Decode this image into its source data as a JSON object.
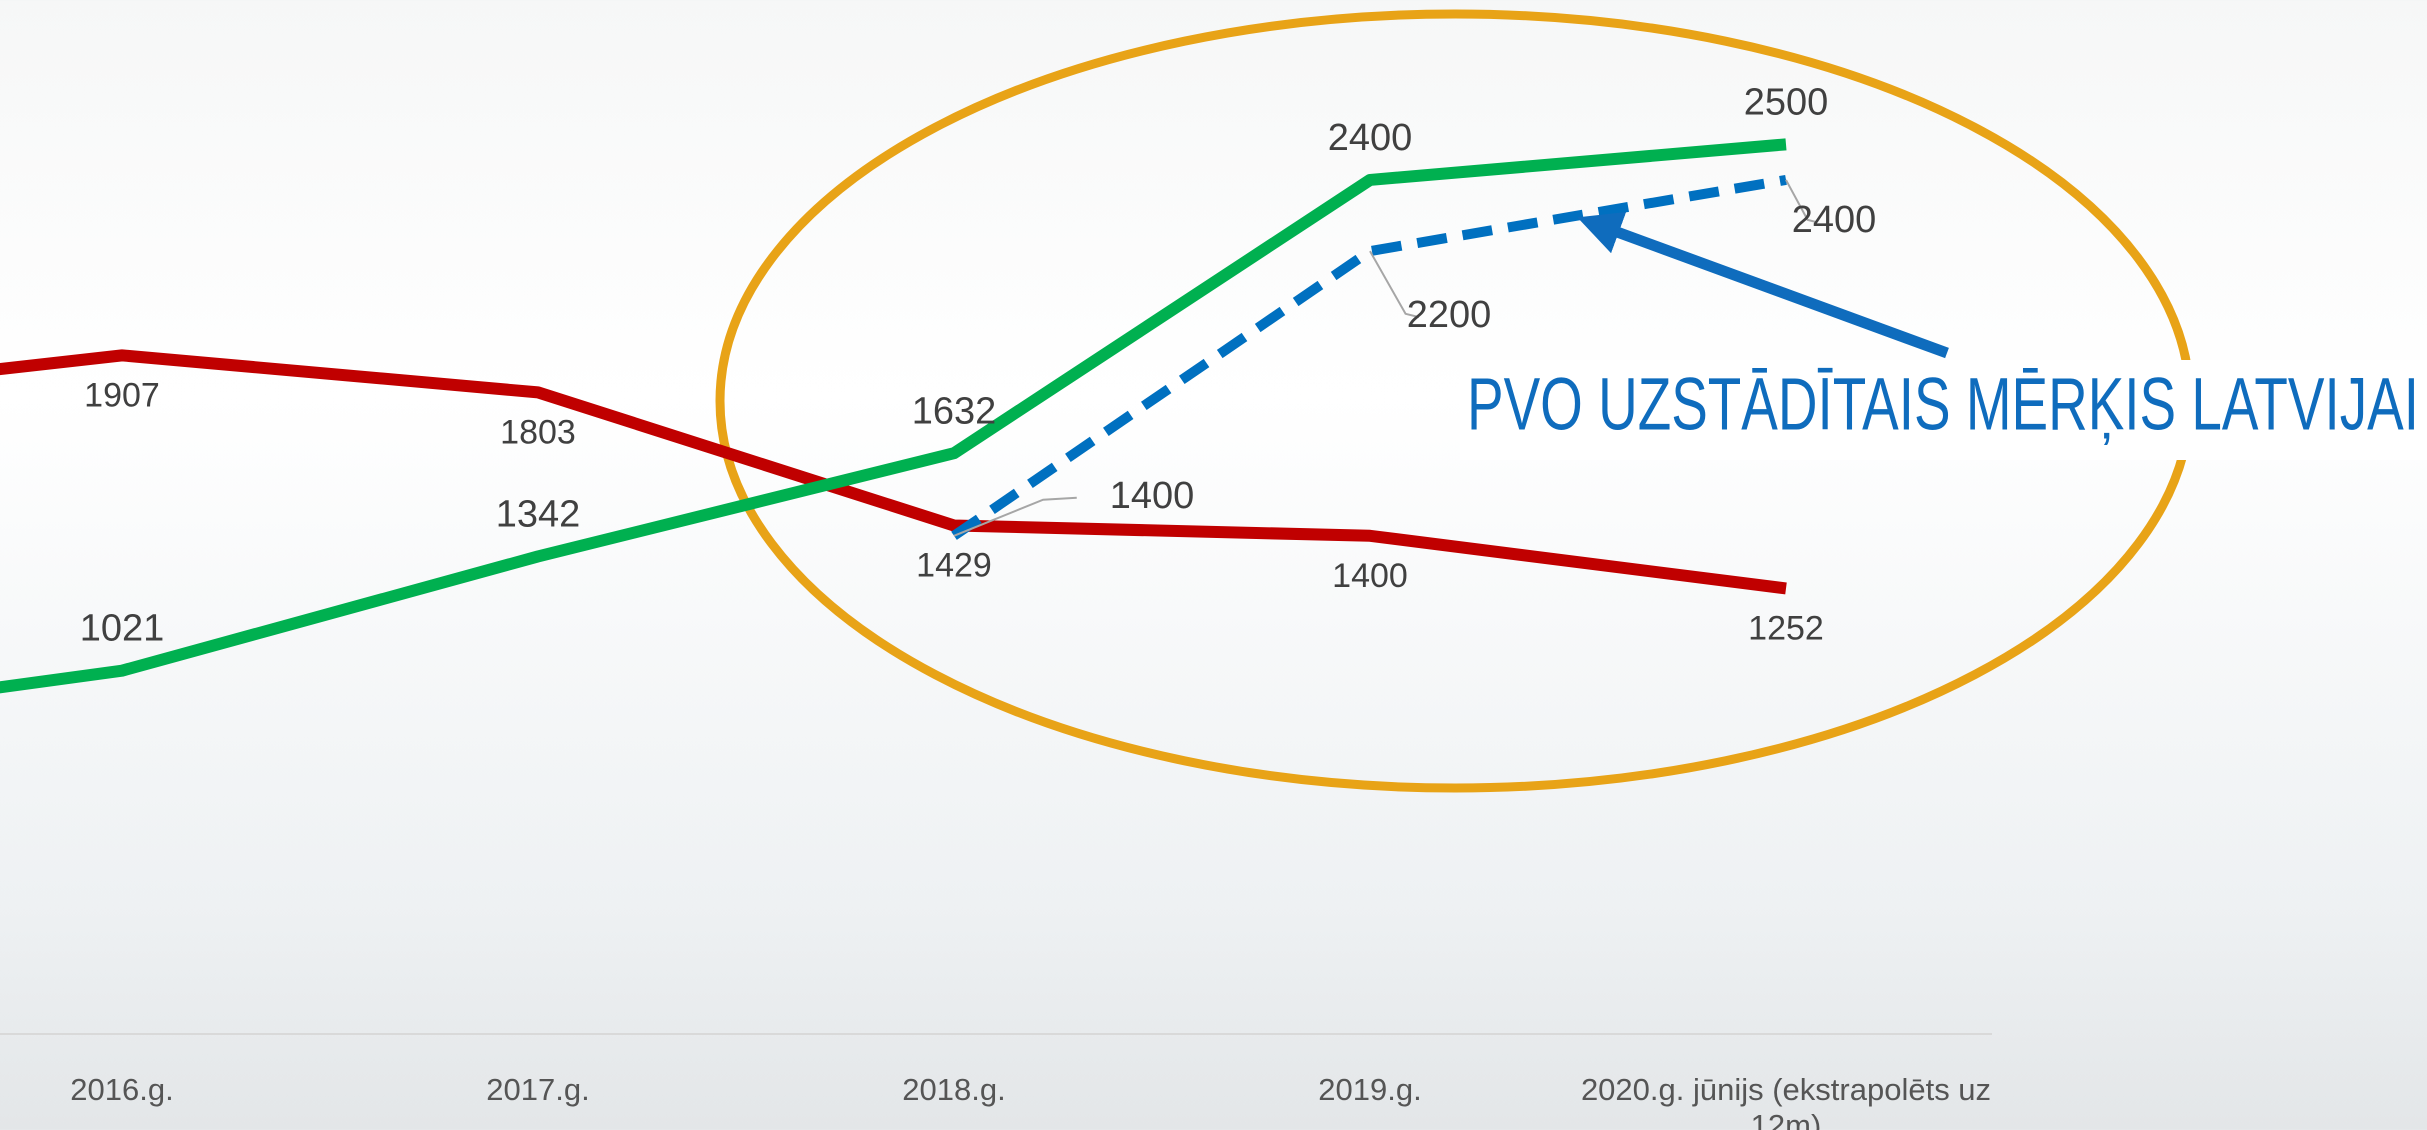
{
  "chart_data": {
    "type": "line",
    "categories": [
      null,
      "2016.g.",
      "2017.g.",
      "2018.g.",
      "2019.g.",
      "2020.g. jūnijs (ekstrapolēts uz 12m)"
    ],
    "series": [
      {
        "color": "#c00000",
        "values": [
          1776,
          1907,
          1803,
          1429,
          1400,
          1252
        ]
      },
      {
        "color": "#00b050",
        "values": [
          862,
          1021,
          1342,
          1632,
          2400,
          2500
        ]
      },
      {
        "color": "#0070c0",
        "dashed": true,
        "values": [
          null,
          null,
          null,
          1400,
          2200,
          2400
        ]
      }
    ],
    "ylim": [
      0,
      2900
    ],
    "annotation": "PVO UZSTĀDĪTAIS MĒRĶIS LATVIJAI",
    "annotation_color": "#0f6cbd",
    "highlight_color": "#e8a317"
  }
}
